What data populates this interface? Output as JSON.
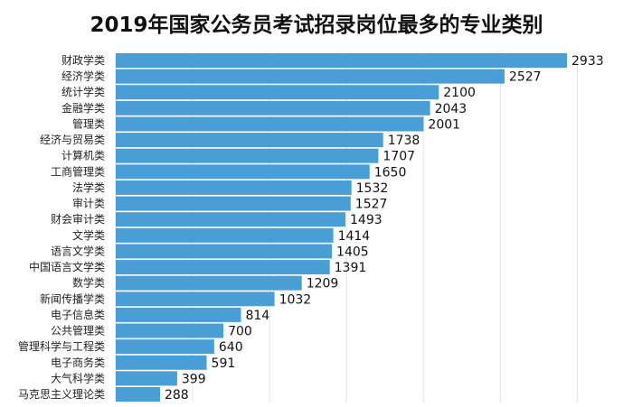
{
  "chart_data": {
    "type": "bar",
    "orientation": "horizontal",
    "title": "2019年国家公务员考试招录岗位最多的专业类别",
    "categories": [
      "财政学类",
      "经济学类",
      "统计学类",
      "金融学类",
      "管理类",
      "经济与贸易类",
      "计算机类",
      "工商管理类",
      "法学类",
      "审计类",
      "财会审计类",
      "文学类",
      "语言文学类",
      "中国语言文学类",
      "数学类",
      "新闻传播学类",
      "电子信息类",
      "公共管理类",
      "管理科学与工程类",
      "电子商务类",
      "大气科学类",
      "马克思主义理论类"
    ],
    "values": [
      2933,
      2527,
      2100,
      2043,
      2001,
      1738,
      1707,
      1650,
      1532,
      1527,
      1493,
      1414,
      1405,
      1391,
      1209,
      1032,
      814,
      700,
      640,
      591,
      399,
      288
    ],
    "xlim": [
      0,
      3000
    ],
    "grid": true,
    "data_labels": true,
    "bar_color": "#4a9ed6"
  }
}
